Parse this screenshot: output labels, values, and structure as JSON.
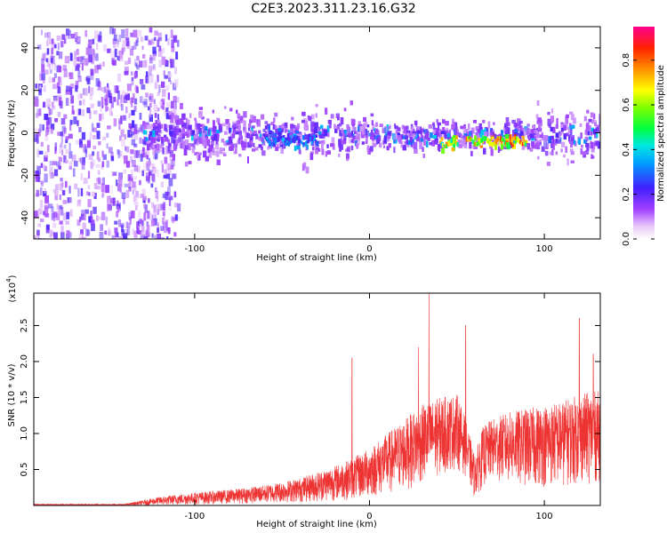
{
  "title": "C2E3.2023.311.23.16.G32",
  "colors": {
    "accent": "#ee3333",
    "frame": "#000000"
  },
  "chart_data": [
    {
      "type": "heatmap",
      "title": "C2E3.2023.311.23.16.G32",
      "xlabel": "Height of straight line (km)",
      "ylabel": "Frequency (Hz)",
      "xlim": [
        -192,
        132
      ],
      "ylim": [
        -50,
        50
      ],
      "xticks": [
        -100,
        0,
        100
      ],
      "xtick_labels": [
        "-100",
        "0",
        "100"
      ],
      "yticks": [
        -40,
        -20,
        0,
        20,
        40
      ],
      "ytick_labels": [
        "-40",
        "-20",
        "0",
        "20",
        "40"
      ],
      "colorbar": {
        "label": "Normalized spectral amplitude",
        "range": [
          0.0,
          0.95
        ],
        "ticks": [
          0.0,
          0.2,
          0.4,
          0.6,
          0.8
        ],
        "tick_labels": [
          "0.0",
          "0.2",
          "0.4",
          "0.6",
          "0.8"
        ],
        "colormap": "rainbow (purple-blue-cyan-green-yellow-red-magenta)"
      },
      "features": {
        "noise_region_x": [
          -192,
          -120
        ],
        "signal_band_center_hz": 0,
        "signal_band_halfwidth_hz": 8,
        "strong_segments": [
          {
            "x_range": [
              -60,
              -30
            ],
            "freq_hz": -3,
            "amplitude": 0.35
          },
          {
            "x_range": [
              40,
              50
            ],
            "freq_hz": -4,
            "amplitude": 0.7
          },
          {
            "x_range": [
              55,
              90
            ],
            "freq_hz": -3,
            "amplitude": 0.8
          }
        ]
      }
    },
    {
      "type": "line",
      "xlabel": "Height of straight line (km)",
      "ylabel": "SNR (10 * v/v)",
      "y_scale_label": "(x10^4)",
      "scale_base": "(x10",
      "scale_exp": "4",
      "scale_close": ")",
      "xlim": [
        -192,
        132
      ],
      "ylim": [
        0,
        2.95
      ],
      "xticks": [
        -100,
        0,
        100
      ],
      "xtick_labels": [
        "-100",
        "0",
        "100"
      ],
      "yticks": [
        0.5,
        1.0,
        1.5,
        2.0,
        2.5
      ],
      "ytick_labels": [
        "0.5",
        "1.0",
        "1.5",
        "2.0",
        "2.5"
      ],
      "series": [
        {
          "name": "SNR",
          "color": "#ee3333",
          "envelope_x": [
            -192,
            -140,
            -120,
            -100,
            -80,
            -60,
            -40,
            -20,
            -10,
            0,
            20,
            30,
            40,
            50,
            55,
            60,
            65,
            70,
            80,
            90,
            100,
            110,
            120,
            132
          ],
          "envelope_y": [
            0.02,
            0.02,
            0.12,
            0.18,
            0.22,
            0.28,
            0.38,
            0.55,
            0.65,
            0.8,
            1.2,
            1.4,
            1.5,
            1.55,
            1.2,
            0.7,
            1.1,
            1.2,
            1.3,
            1.35,
            1.4,
            1.45,
            1.55,
            1.6
          ],
          "baseline_y": [
            0.0,
            0.0,
            0.0,
            0.01,
            0.02,
            0.03,
            0.04,
            0.06,
            0.08,
            0.1,
            0.2,
            0.3,
            0.4,
            0.5,
            0.4,
            0.1,
            0.25,
            0.35,
            0.3,
            0.25,
            0.25,
            0.25,
            0.3,
            0.3
          ],
          "peaks": [
            {
              "x": -10,
              "y": 2.05
            },
            {
              "x": 28,
              "y": 2.2
            },
            {
              "x": 34,
              "y": 2.95
            },
            {
              "x": 55,
              "y": 2.5
            },
            {
              "x": 120,
              "y": 2.6
            },
            {
              "x": 128,
              "y": 2.1
            }
          ]
        }
      ]
    }
  ]
}
